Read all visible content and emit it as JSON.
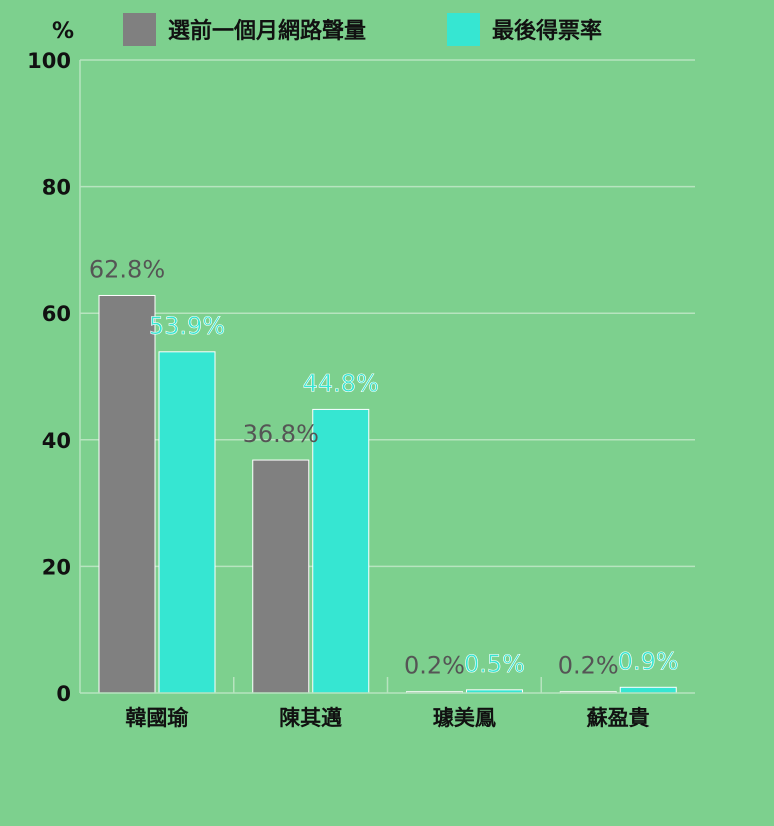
{
  "chart_data": {
    "type": "bar",
    "unit_label": "%",
    "categories": [
      "韓國瑜",
      "陳其邁",
      "璩美鳳",
      "蘇盈貴"
    ],
    "series": [
      {
        "name": "選前一個月網路聲量",
        "color": "#808080",
        "values": [
          62.8,
          36.8,
          0.2,
          0.2
        ],
        "labels": [
          "62.8%",
          "36.8%",
          "0.2%",
          "0.2%"
        ],
        "label_color": "#555555"
      },
      {
        "name": "最後得票率",
        "color": "#36e6d2",
        "values": [
          53.9,
          44.8,
          0.5,
          0.9
        ],
        "labels": [
          "53.9%",
          "44.8%",
          "0.5%",
          "0.9%"
        ],
        "label_color": "#36e6d2"
      }
    ],
    "ylim": [
      0,
      100
    ],
    "yticks": [
      0,
      20,
      40,
      60,
      80,
      100
    ],
    "grid": true,
    "legend_position": "top"
  },
  "colors": {
    "background": "#7dd08e",
    "grid": "#b7e4bf",
    "axis": "#b7e4bf"
  }
}
